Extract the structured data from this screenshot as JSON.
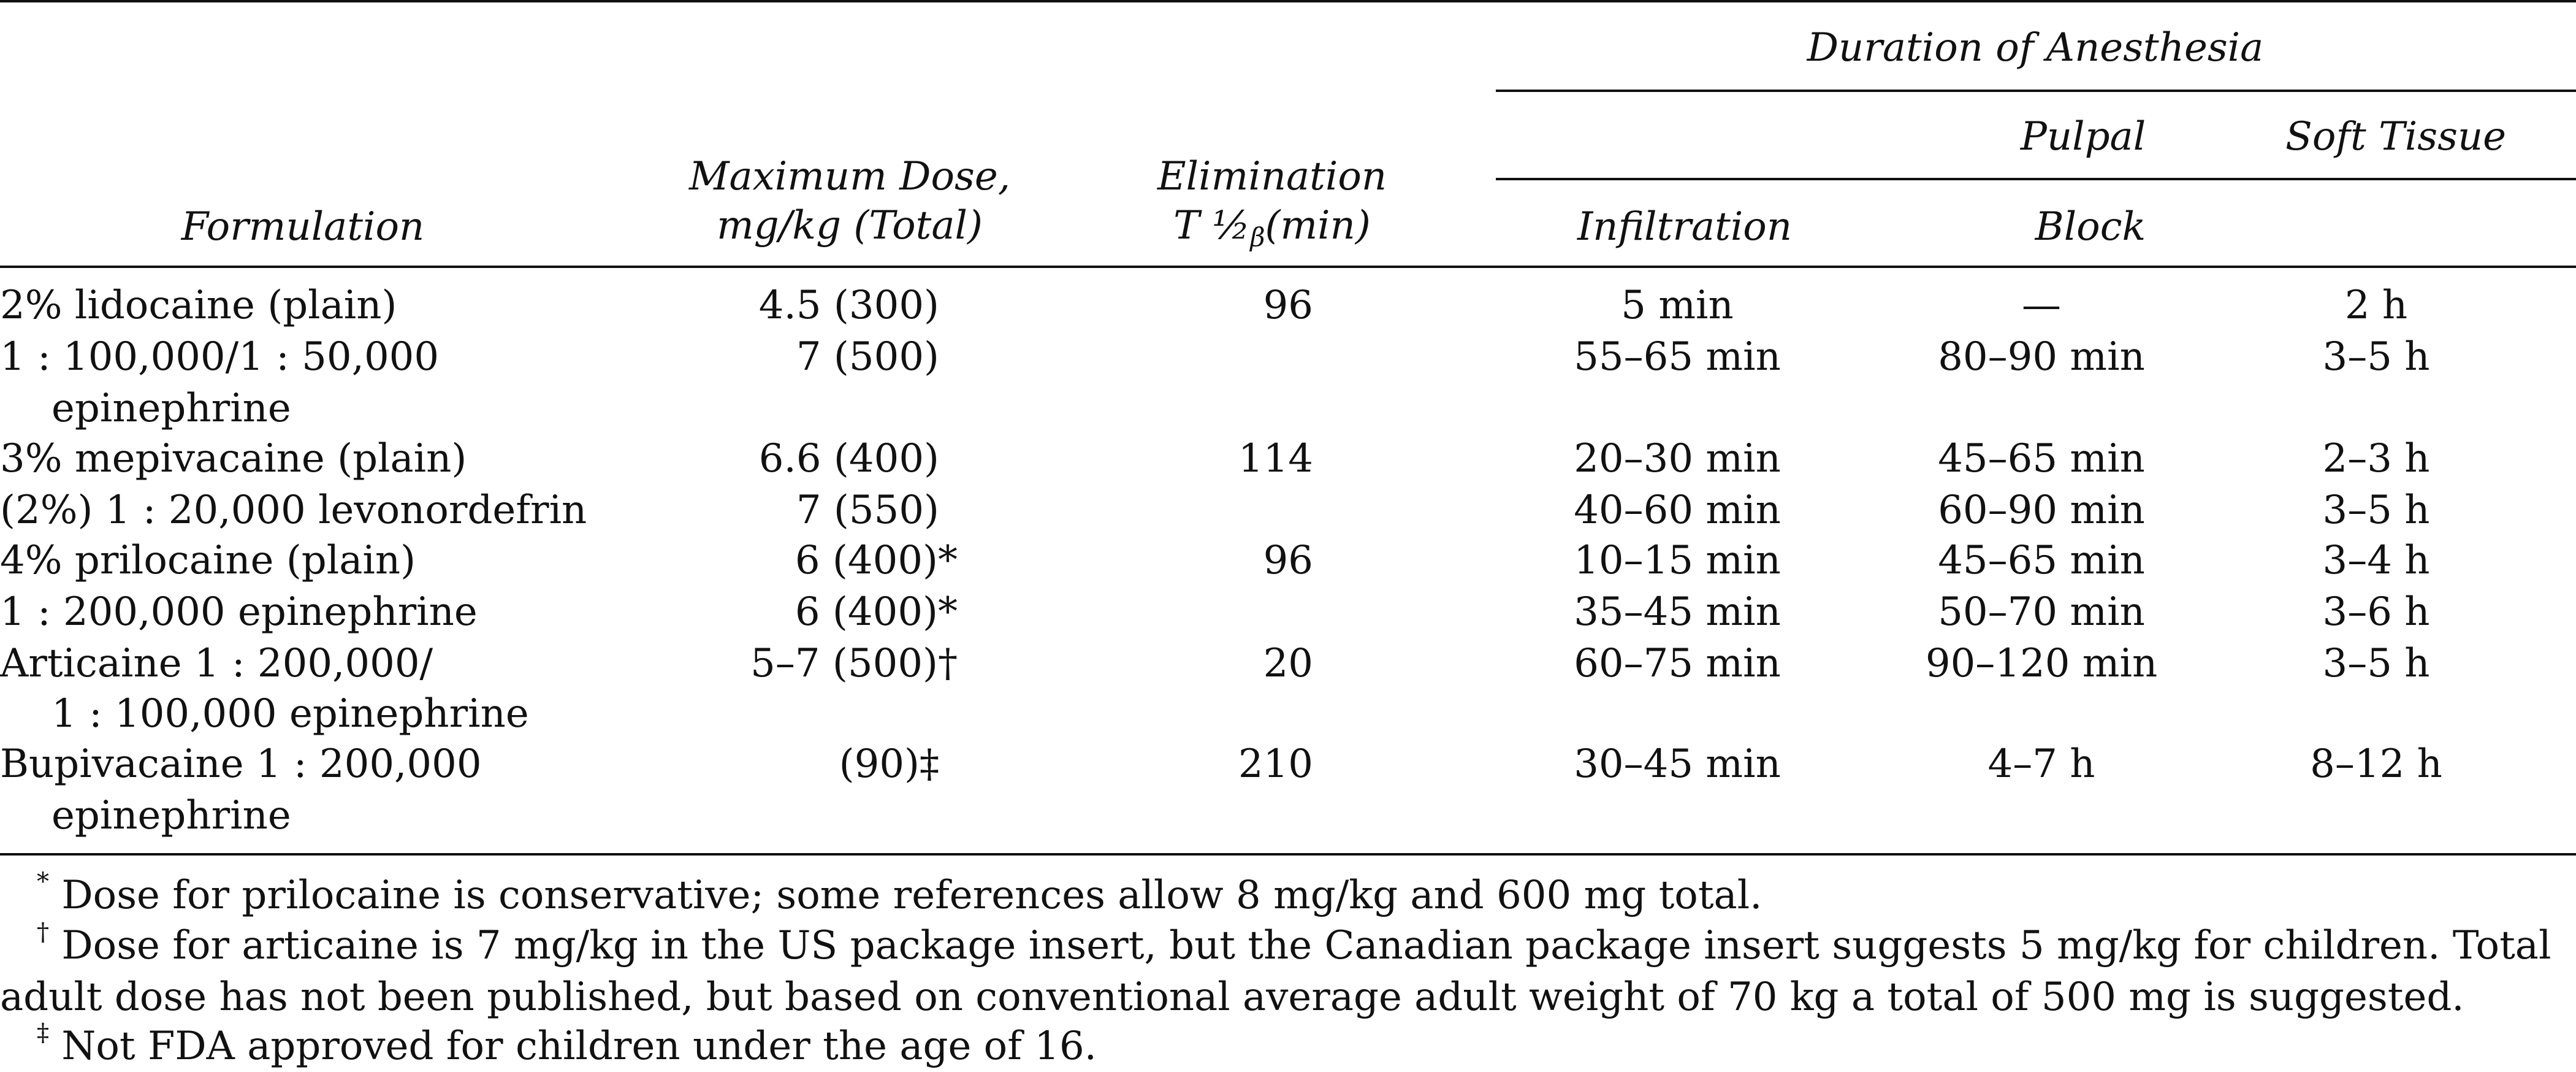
{
  "headers": {
    "duration": "Duration of Anesthesia",
    "pulpal": "Pulpal",
    "soft_tissue": "Soft Tissue",
    "formulation": "Formulation",
    "max_dose_line1": "Maximum Dose,",
    "max_dose_line2": "mg/kg (Total)",
    "elim_line1": "Elimination",
    "elim_t": "T ½",
    "elim_sub": "β",
    "elim_unit": "(min)",
    "infiltration": "Infiltration",
    "block": "Block"
  },
  "rows": [
    {
      "formulation": [
        "2% lidocaine (plain)"
      ],
      "dose": "4.5 (300)",
      "elim": "96",
      "infiltration": "5 min",
      "block": "—",
      "soft": "2 h"
    },
    {
      "formulation": [
        "1 : 100,000/1 : 50,000",
        "epinephrine"
      ],
      "dose": "7 (500)",
      "elim": "",
      "infiltration": "55–65 min",
      "block": "80–90 min",
      "soft": "3–5 h"
    },
    {
      "formulation": [
        "3% mepivacaine (plain)"
      ],
      "dose": "6.6 (400)",
      "elim": "114",
      "infiltration": "20–30 min",
      "block": "45–65 min",
      "soft": "2–3 h"
    },
    {
      "formulation": [
        "(2%) 1 : 20,000 levonordefrin"
      ],
      "dose": "7 (550)",
      "elim": "",
      "infiltration": "40–60 min",
      "block": "60–90 min",
      "soft": "3–5 h"
    },
    {
      "formulation": [
        "4% prilocaine (plain)"
      ],
      "dose": "6 (400)*",
      "elim": "96",
      "infiltration": "10–15 min",
      "block": "45–65 min",
      "soft": "3–4 h"
    },
    {
      "formulation": [
        "1 : 200,000 epinephrine"
      ],
      "dose": "6 (400)*",
      "elim": "",
      "infiltration": "35–45 min",
      "block": "50–70 min",
      "soft": "3–6 h"
    },
    {
      "formulation": [
        "Articaine 1 : 200,000/",
        "1 : 100,000 epinephrine"
      ],
      "dose": "5–7 (500)†",
      "elim": "20",
      "infiltration": "60–75 min",
      "block": "90–120 min",
      "soft": "3–5 h"
    },
    {
      "formulation": [
        "Bupivacaine 1 : 200,000",
        "epinephrine"
      ],
      "dose": "(90)‡",
      "elim": "210",
      "infiltration": "30–45 min",
      "block": "4–7 h",
      "soft": "8–12 h"
    }
  ],
  "footnotes": [
    {
      "mark": "*",
      "text": "Dose for prilocaine is conservative; some references allow 8 mg/kg and 600 mg total."
    },
    {
      "mark": "†",
      "text": "Dose for articaine is 7 mg/kg in the US package insert, but the Canadian package insert suggests 5 mg/kg for children. Total adult dose has not been published, but based on conventional average adult weight of 70 kg a total of 500 mg is suggested."
    },
    {
      "mark": "‡",
      "text": "Not FDA approved for children under the age of 16."
    }
  ]
}
